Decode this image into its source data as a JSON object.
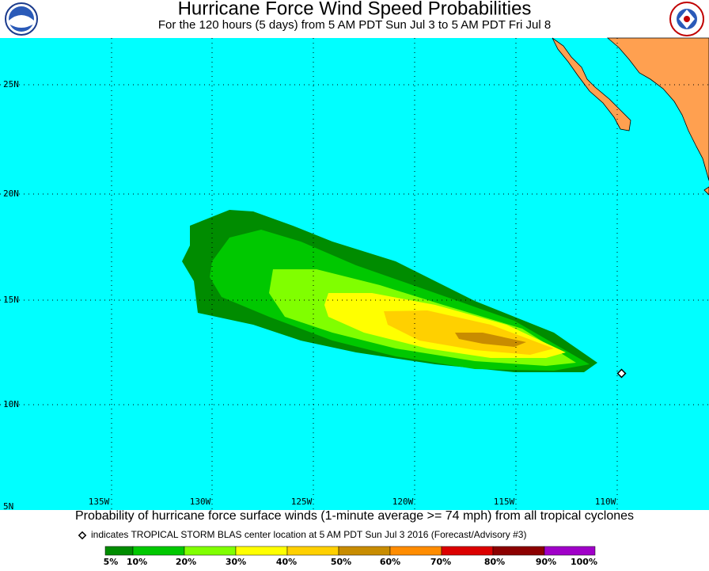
{
  "header": {
    "title": "Hurricane Force Wind Speed Probabilities",
    "subtitle": "For the 120 hours (5 days) from 5 AM PDT Sun Jul 3 to 5 AM PDT Fri Jul 8"
  },
  "map": {
    "lat_labels": [
      "25N",
      "20N",
      "15N",
      "10N",
      "5N"
    ],
    "lon_labels": [
      "135W",
      "130W",
      "125W",
      "120W",
      "115W",
      "110W"
    ]
  },
  "caption": "Probability of hurricane force surface winds (1-minute average >= 74 mph) from all tropical cyclones",
  "note": "indicates TROPICAL STORM BLAS center location at 5 AM PDT Sun Jul 3 2016 (Forecast/Advisory #3)",
  "legend": {
    "labels": [
      "5%",
      "10%",
      "20%",
      "30%",
      "40%",
      "50%",
      "60%",
      "70%",
      "80%",
      "90%",
      "100%"
    ],
    "colors": [
      "#008c00",
      "#00c800",
      "#80ff00",
      "#ffff00",
      "#ffd000",
      "#c88c00",
      "#ff8c00",
      "#dc0000",
      "#8c0000",
      "#a000c8"
    ]
  }
}
